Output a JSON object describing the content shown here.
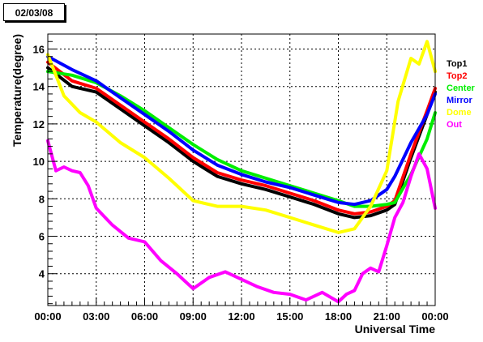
{
  "date_label": "02/03/08",
  "chart_data": {
    "type": "line",
    "title": "",
    "xlabel": "Universal Time",
    "ylabel": "Temperature(degree)",
    "xlim": [
      0,
      24
    ],
    "ylim": [
      2.3,
      16.8
    ],
    "grid": true,
    "legend_position": "right",
    "x_ticks": [
      0,
      3,
      6,
      9,
      12,
      15,
      18,
      21,
      24
    ],
    "x_tick_labels": [
      "00:00",
      "03:00",
      "06:00",
      "09:00",
      "12:00",
      "15:00",
      "18:00",
      "21:00",
      "00:00"
    ],
    "y_ticks": [
      4,
      6,
      8,
      10,
      12,
      14,
      16
    ],
    "y_tick_labels": [
      "4",
      "6",
      "8",
      "10",
      "12",
      "14",
      "16"
    ],
    "series": [
      {
        "name": "Top1",
        "color": "#000000",
        "x": [
          0,
          1.5,
          3,
          4.5,
          6,
          7.5,
          9,
          10.5,
          12,
          13.5,
          15,
          16.5,
          18,
          19,
          20,
          21,
          21.5,
          22.5,
          23.5,
          24
        ],
        "y": [
          15.0,
          14.0,
          13.7,
          12.8,
          11.9,
          11.0,
          10.0,
          9.2,
          8.8,
          8.5,
          8.1,
          7.7,
          7.2,
          7.0,
          7.1,
          7.4,
          7.7,
          10.2,
          12.5,
          13.7
        ]
      },
      {
        "name": "Top2",
        "color": "#ff0000",
        "x": [
          0,
          1.5,
          3,
          4.5,
          6,
          7.5,
          9,
          10.5,
          12,
          13.5,
          15,
          16.5,
          18,
          19,
          20,
          21,
          21.5,
          22.5,
          23.5,
          24
        ],
        "y": [
          15.3,
          14.3,
          13.9,
          13.0,
          12.1,
          11.2,
          10.2,
          9.4,
          9.0,
          8.7,
          8.3,
          7.9,
          7.4,
          7.2,
          7.3,
          7.6,
          7.9,
          10.4,
          12.7,
          13.9
        ]
      },
      {
        "name": "Center",
        "color": "#00ee00",
        "x": [
          0,
          1.5,
          3,
          4.5,
          6,
          7.5,
          9,
          10.5,
          12,
          13.5,
          15,
          16.5,
          18,
          19,
          20,
          21,
          21.5,
          22.5,
          23.5,
          24
        ],
        "y": [
          14.8,
          14.6,
          14.2,
          13.5,
          12.7,
          11.8,
          10.9,
          10.1,
          9.5,
          9.1,
          8.7,
          8.3,
          7.9,
          7.6,
          7.6,
          7.7,
          7.8,
          9.3,
          11.2,
          12.6
        ]
      },
      {
        "name": "Mirror",
        "color": "#0000ff",
        "x": [
          0,
          1.5,
          3,
          4.5,
          6,
          7.5,
          9,
          10.5,
          12,
          13.5,
          15,
          16.5,
          18,
          19,
          20,
          21,
          21.5,
          22.5,
          23.5,
          24
        ],
        "y": [
          15.6,
          14.9,
          14.3,
          13.4,
          12.5,
          11.6,
          10.6,
          9.8,
          9.3,
          8.9,
          8.6,
          8.2,
          7.8,
          7.7,
          7.9,
          8.5,
          9.2,
          11.0,
          12.5,
          13.6
        ]
      },
      {
        "name": "Dome",
        "color": "#ffff00",
        "x": [
          0,
          1,
          2,
          3,
          4.5,
          6,
          7.5,
          9,
          10.5,
          12,
          13.5,
          15,
          16.5,
          18,
          19,
          20,
          21,
          21.7,
          22.5,
          23,
          23.5,
          24
        ],
        "y": [
          15.7,
          13.5,
          12.6,
          12.1,
          11.0,
          10.2,
          9.1,
          7.9,
          7.6,
          7.6,
          7.4,
          7.0,
          6.6,
          6.2,
          6.4,
          7.6,
          9.5,
          13.2,
          15.5,
          15.2,
          16.4,
          14.8
        ]
      },
      {
        "name": "Out",
        "color": "#ff00ff",
        "x": [
          0,
          0.5,
          1,
          1.5,
          2,
          2.5,
          3,
          4,
          5,
          6,
          7,
          8,
          8.5,
          9,
          10,
          11,
          12,
          13,
          14,
          15,
          16,
          17,
          18,
          18.5,
          19,
          19.5,
          20,
          20.5,
          21,
          21.5,
          22,
          22.5,
          23,
          23.5,
          24
        ],
        "y": [
          11.1,
          9.5,
          9.7,
          9.5,
          9.4,
          8.7,
          7.5,
          6.6,
          5.9,
          5.7,
          4.7,
          4.0,
          3.6,
          3.2,
          3.8,
          4.1,
          3.7,
          3.3,
          3.0,
          2.9,
          2.6,
          3.0,
          2.5,
          2.9,
          3.1,
          4.0,
          4.3,
          4.1,
          5.5,
          7.0,
          7.8,
          9.2,
          10.4,
          9.6,
          7.5
        ]
      }
    ]
  }
}
